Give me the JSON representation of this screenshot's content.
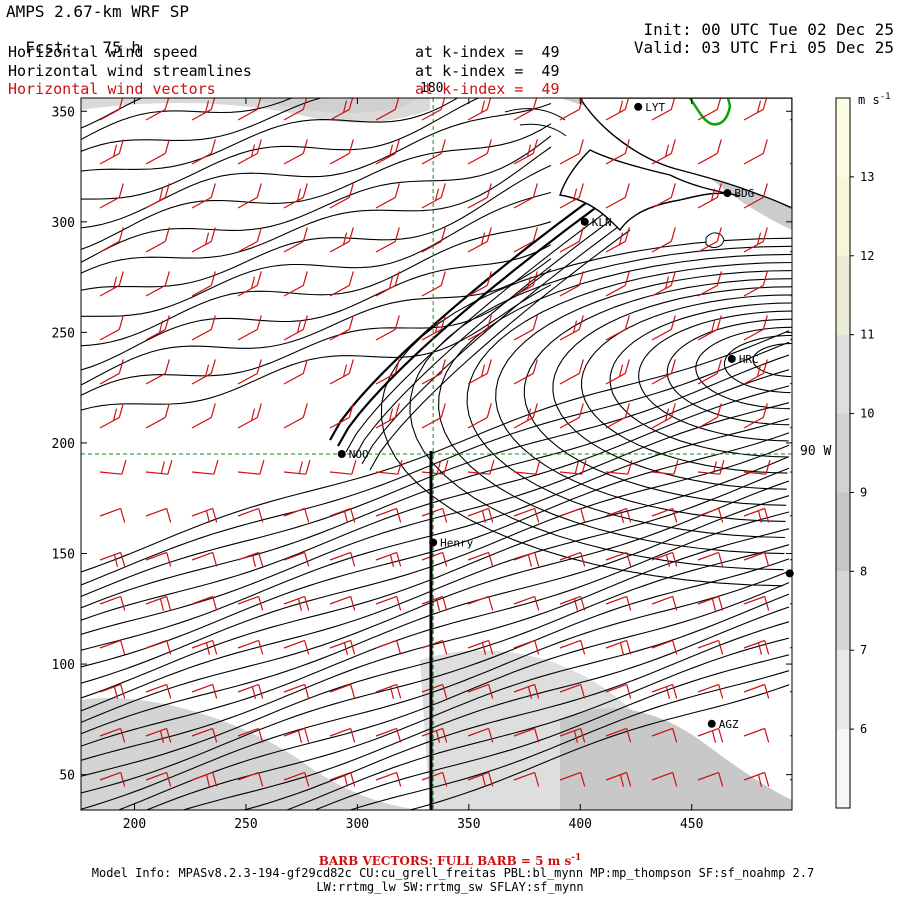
{
  "header": {
    "model": "AMPS 2.67-km WRF SP",
    "fcst_label": "Fcst:",
    "fcst_value": "75 h",
    "init_label": "Init:",
    "init_value": "00 UTC Tue 02 Dec 25",
    "valid_label": "Valid:",
    "valid_value": "03 UTC Fri 05 Dec 25"
  },
  "fields": [
    {
      "name": "Horizontal wind speed",
      "level": "at k-index =  49",
      "color": "#000000"
    },
    {
      "name": "Horizontal wind streamlines",
      "level": "at k-index =  49",
      "color": "#000000"
    },
    {
      "name": "Horizontal wind vectors",
      "level": "at k-index =  49",
      "color": "#d01010"
    }
  ],
  "axes": {
    "x_ticks": [
      "200",
      "250",
      "300",
      "350",
      "400",
      "450"
    ],
    "x_values": [
      200,
      250,
      300,
      350,
      400,
      450
    ],
    "y_ticks": [
      "350",
      "300",
      "250",
      "200",
      "150",
      "100",
      "50"
    ],
    "y_values": [
      350,
      300,
      250,
      200,
      150,
      100,
      50
    ],
    "x_range": [
      176,
      495
    ],
    "y_range": [
      34,
      356
    ]
  },
  "grid_lines": {
    "meridian_label": "180",
    "meridian_x": 334,
    "parallel_label": "90 W",
    "parallel_y": 195
  },
  "colorbar": {
    "unit": "m s",
    "unit_exp": "-1",
    "labels": [
      "13",
      "12",
      "11",
      "10",
      "9",
      "8",
      "7",
      "6"
    ],
    "values": [
      13,
      12,
      11,
      10,
      9,
      8,
      7,
      6
    ]
  },
  "stations": [
    {
      "id": "LYT",
      "x": 426,
      "y": 352
    },
    {
      "id": "BDG",
      "x": 466,
      "y": 313
    },
    {
      "id": "KLN",
      "x": 402,
      "y": 300
    },
    {
      "id": "HRC",
      "x": 468,
      "y": 238
    },
    {
      "id": "NOO",
      "x": 293,
      "y": 195
    },
    {
      "id": "Henry",
      "x": 334,
      "y": 155
    },
    {
      "id": "AGZ",
      "x": 459,
      "y": 73
    },
    {
      "id": "",
      "x": 494,
      "y": 141
    }
  ],
  "footer": {
    "barb": "BARB VECTORS:  FULL BARB = 5 m s",
    "barb_exp": "-1",
    "model_info": "Model Info: MPASv8.2.3-194-gf29cd82c CU:cu_grell_freitas PBL:bl_mynn MP:mp_thompson SF:sf_noahmp 2.7",
    "model_info2": "LW:rrtmg_lw SW:rrtmg_sw SFLAY:sf_mynn"
  },
  "colors": {
    "barb": "#d01010",
    "coast": "#000000",
    "green_contour": "#10a010",
    "gridline": "#1a8a1a",
    "shade_light": "#d6d6d6",
    "shade_mid": "#c4c4c4"
  }
}
